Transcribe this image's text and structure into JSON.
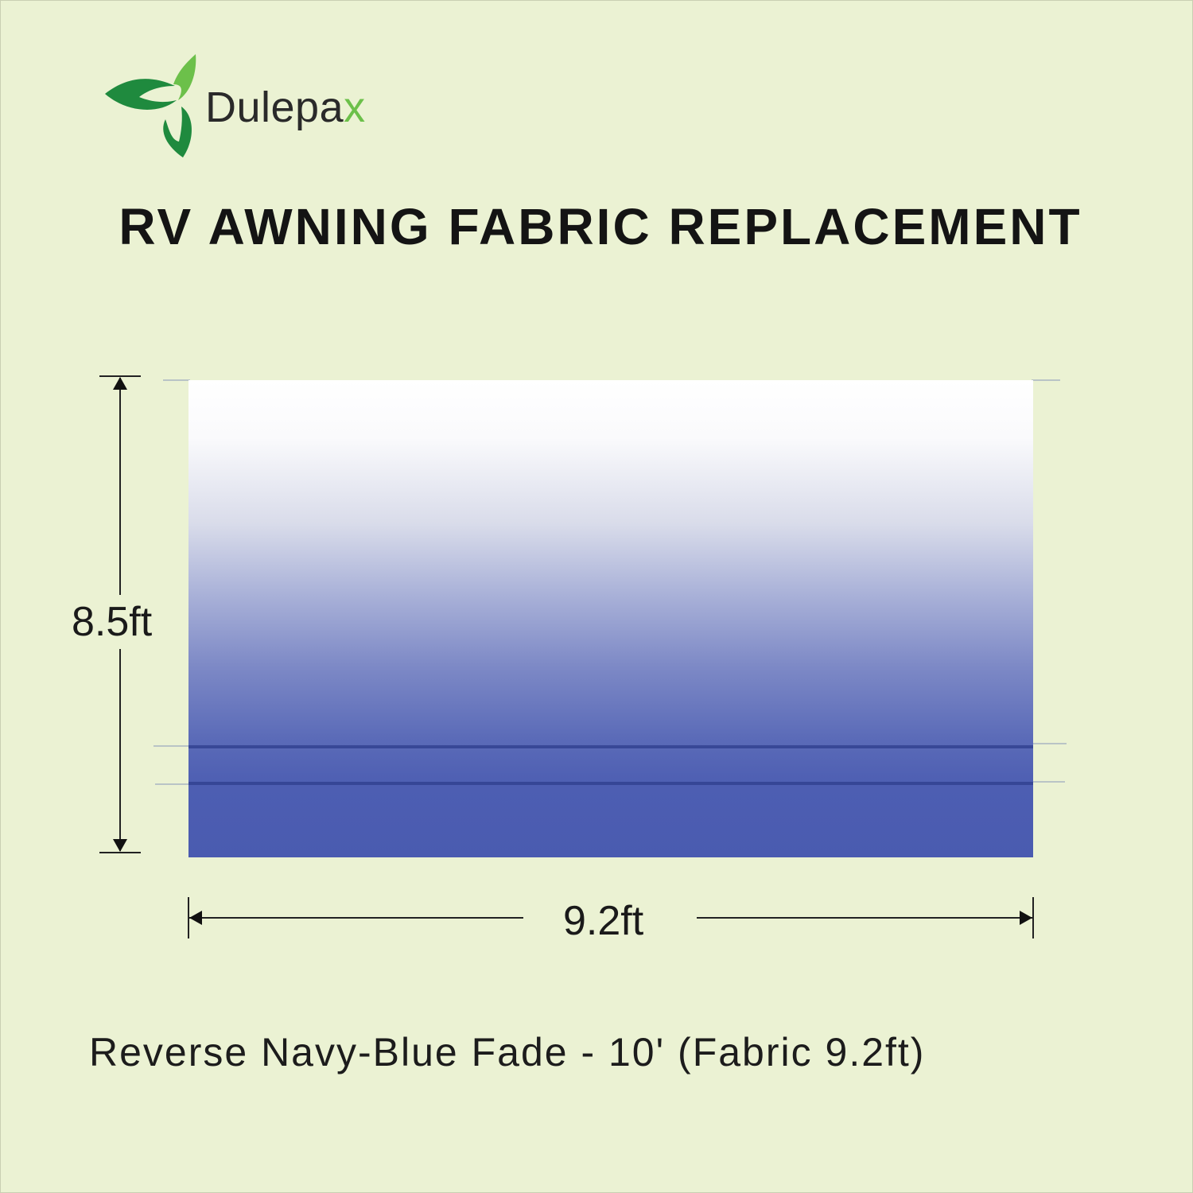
{
  "brand": {
    "name_main": "Dulepa",
    "name_accent": "x",
    "logo": "three-leaf-logo",
    "colors": {
      "dark_green": "#1f8a3e",
      "light_green": "#6cc04a"
    }
  },
  "title": "RV AWNING FABRIC REPLACEMENT",
  "dimensions": {
    "height": "8.5ft",
    "width": "9.2ft"
  },
  "fabric": {
    "color_top": "#ffffff",
    "color_bottom": "#4a5bb0"
  },
  "subtitle": "Reverse Navy-Blue Fade - 10' (Fabric 9.2ft)",
  "background": "#ebf2d3"
}
